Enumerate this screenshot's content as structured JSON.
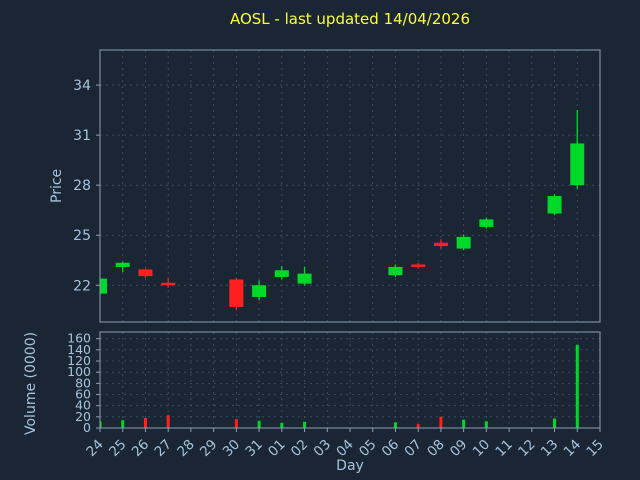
{
  "colors": {
    "background": "#1a2634",
    "grid": "#42536a",
    "frame": "#8fa0b3",
    "tick_label": "#a5c3dd",
    "title": "#ffff33",
    "up": "#00d928",
    "down": "#ff2020"
  },
  "chart_data": {
    "type": "candlestick",
    "title": "AOSL - last updated 14/04/2026",
    "xlabel": "Day",
    "ylabel_price": "Price",
    "ylabel_volume": "Volume (0000)",
    "legend": "none",
    "grid": "dashed",
    "price_ticks": [
      22,
      25,
      28,
      31,
      34
    ],
    "price_range": [
      19.8,
      36.1
    ],
    "volume_ticks": [
      0,
      20,
      40,
      60,
      80,
      100,
      120,
      140,
      160
    ],
    "volume_range": [
      0,
      172
    ],
    "categories": [
      "24",
      "25",
      "26",
      "27",
      "28",
      "29",
      "30",
      "31",
      "01",
      "02",
      "03",
      "04",
      "05",
      "06",
      "07",
      "08",
      "09",
      "10",
      "11",
      "12",
      "13",
      "14",
      "15"
    ],
    "series": [
      {
        "day": "24",
        "open": 21.5,
        "high": 22.5,
        "low": 21.4,
        "close": 22.4,
        "volume": 12
      },
      {
        "day": "25",
        "open": 23.1,
        "high": 23.4,
        "low": 22.8,
        "close": 23.35,
        "volume": 14
      },
      {
        "day": "26",
        "open": 22.95,
        "high": 23.0,
        "low": 22.45,
        "close": 22.55,
        "volume": 18
      },
      {
        "day": "27",
        "open": 22.15,
        "high": 22.45,
        "low": 21.85,
        "close": 22.0,
        "volume": 23
      },
      {
        "day": "30",
        "open": 22.35,
        "high": 22.45,
        "low": 20.5,
        "close": 20.7,
        "volume": 16
      },
      {
        "day": "31",
        "open": 21.3,
        "high": 22.3,
        "low": 21.1,
        "close": 22.0,
        "volume": 13
      },
      {
        "day": "01",
        "open": 22.5,
        "high": 23.15,
        "low": 22.35,
        "close": 22.9,
        "volume": 9
      },
      {
        "day": "02",
        "open": 22.1,
        "high": 23.1,
        "low": 22.0,
        "close": 22.7,
        "volume": 11
      },
      {
        "day": "06",
        "open": 22.6,
        "high": 23.25,
        "low": 22.5,
        "close": 23.1,
        "volume": 10
      },
      {
        "day": "07",
        "open": 23.25,
        "high": 23.35,
        "low": 23.0,
        "close": 23.1,
        "volume": 7
      },
      {
        "day": "08",
        "open": 24.55,
        "high": 24.75,
        "low": 24.2,
        "close": 24.35,
        "volume": 20
      },
      {
        "day": "09",
        "open": 24.2,
        "high": 25.05,
        "low": 24.1,
        "close": 24.9,
        "volume": 15
      },
      {
        "day": "10",
        "open": 25.5,
        "high": 26.05,
        "low": 25.4,
        "close": 25.95,
        "volume": 12
      },
      {
        "day": "13",
        "open": 26.3,
        "high": 27.45,
        "low": 26.2,
        "close": 27.35,
        "volume": 17
      },
      {
        "day": "14",
        "open": 28.0,
        "high": 32.5,
        "low": 27.8,
        "close": 30.5,
        "volume": 149
      }
    ]
  }
}
